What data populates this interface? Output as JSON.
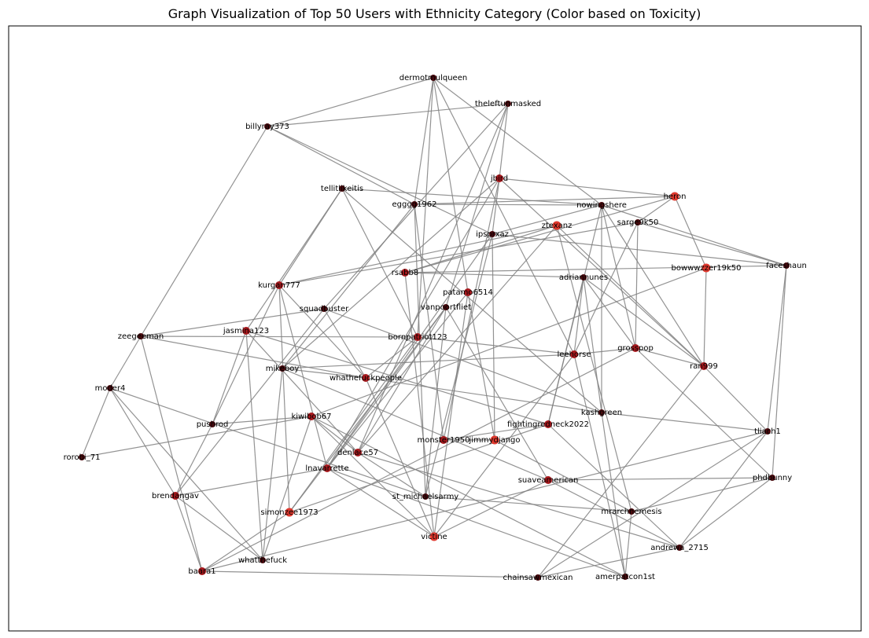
{
  "title": "Graph Visualization of Top 50 Users with Ethnicity Category (Color based on Toxicity)",
  "colors": {
    "low_toxicity": "#4a0a0e",
    "mid_toxicity": "#a8191d",
    "high_toxicity": "#e0392e",
    "edge": "#808080"
  },
  "nodes": [
    {
      "id": "dermotmulqueen",
      "toxicity": "low"
    },
    {
      "id": "theleftunmasked",
      "toxicity": "low"
    },
    {
      "id": "billyray373",
      "toxicity": "low"
    },
    {
      "id": "jbird",
      "toxicity": "mid"
    },
    {
      "id": "heron",
      "toxicity": "high"
    },
    {
      "id": "tellitlikeitis",
      "toxicity": "low"
    },
    {
      "id": "egggg1962",
      "toxicity": "low"
    },
    {
      "id": "nowingshere",
      "toxicity": "low"
    },
    {
      "id": "sarge9k50",
      "toxicity": "low"
    },
    {
      "id": "ztexanz",
      "toxicity": "high"
    },
    {
      "id": "ipsprxaz",
      "toxicity": "low"
    },
    {
      "id": "faceshaun",
      "toxicity": "low"
    },
    {
      "id": "bowwwzzer19k50",
      "toxicity": "high"
    },
    {
      "id": "rsabb8",
      "toxicity": "mid"
    },
    {
      "id": "adriannunes",
      "toxicity": "low"
    },
    {
      "id": "kurgan777",
      "toxicity": "mid"
    },
    {
      "id": "patamo6514",
      "toxicity": "mid"
    },
    {
      "id": "squadbuster",
      "toxicity": "low"
    },
    {
      "id": "vanpoortfliet",
      "toxicity": "low"
    },
    {
      "id": "zeegeeman",
      "toxicity": "low"
    },
    {
      "id": "jasmina123",
      "toxicity": "mid"
    },
    {
      "id": "bornpatriot123",
      "toxicity": "mid"
    },
    {
      "id": "leehorse",
      "toxicity": "mid"
    },
    {
      "id": "grosspop",
      "toxicity": "mid"
    },
    {
      "id": "ran999",
      "toxicity": "mid"
    },
    {
      "id": "mikeboy",
      "toxicity": "low"
    },
    {
      "id": "whathefuckpeople",
      "toxicity": "mid"
    },
    {
      "id": "moder4",
      "toxicity": "low"
    },
    {
      "id": "kashgreen",
      "toxicity": "low"
    },
    {
      "id": "kiwibob67",
      "toxicity": "mid"
    },
    {
      "id": "pushrod",
      "toxicity": "low"
    },
    {
      "id": "fightingredneck2022",
      "toxicity": "mid"
    },
    {
      "id": "tliach1",
      "toxicity": "low"
    },
    {
      "id": "monster1950",
      "toxicity": "mid"
    },
    {
      "id": "jimmydjango",
      "toxicity": "high"
    },
    {
      "id": "denlace57",
      "toxicity": "mid"
    },
    {
      "id": "rorobi_71",
      "toxicity": "low"
    },
    {
      "id": "lnavarrette",
      "toxicity": "mid"
    },
    {
      "id": "suaveamerican",
      "toxicity": "mid"
    },
    {
      "id": "phdbunny",
      "toxicity": "low"
    },
    {
      "id": "brendangav",
      "toxicity": "mid"
    },
    {
      "id": "st_michaelsarmy",
      "toxicity": "low"
    },
    {
      "id": "mrarchnemesis",
      "toxicity": "low"
    },
    {
      "id": "simonzee1973",
      "toxicity": "high"
    },
    {
      "id": "victine",
      "toxicity": "high"
    },
    {
      "id": "andrewa_2715",
      "toxicity": "low"
    },
    {
      "id": "whatthefuck",
      "toxicity": "low"
    },
    {
      "id": "baara1",
      "toxicity": "mid"
    },
    {
      "id": "chainsawmexican",
      "toxicity": "low"
    },
    {
      "id": "amerpatcon1st",
      "toxicity": "low"
    }
  ],
  "edges": [
    [
      "dermotmulqueen",
      "billyray373"
    ],
    [
      "dermotmulqueen",
      "egggg1962"
    ],
    [
      "dermotmulqueen",
      "nowingshere"
    ],
    [
      "dermotmulqueen",
      "patamo6514"
    ],
    [
      "dermotmulqueen",
      "bornpatriot123"
    ],
    [
      "dermotmulqueen",
      "leehorse"
    ],
    [
      "theleftunmasked",
      "billyray373"
    ],
    [
      "theleftunmasked",
      "jbird"
    ],
    [
      "theleftunmasked",
      "squadbuster"
    ],
    [
      "theleftunmasked",
      "vanpoortfliet"
    ],
    [
      "theleftunmasked",
      "denlace57"
    ],
    [
      "billyray373",
      "zeegeeman"
    ],
    [
      "billyray373",
      "ipsprxaz"
    ],
    [
      "billyray373",
      "egggg1962"
    ],
    [
      "jbird",
      "heron"
    ],
    [
      "jbird",
      "ipsprxaz"
    ],
    [
      "jbird",
      "ran999"
    ],
    [
      "jbird",
      "monster1950"
    ],
    [
      "jbird",
      "lnavarrette"
    ],
    [
      "jbird",
      "mikeboy"
    ],
    [
      "heron",
      "egggg1962"
    ],
    [
      "heron",
      "rsabb8"
    ],
    [
      "heron",
      "bowwwzzer19k50"
    ],
    [
      "heron",
      "sarge9k50"
    ],
    [
      "tellitlikeitis",
      "kurgan777"
    ],
    [
      "tellitlikeitis",
      "nowingshere"
    ],
    [
      "tellitlikeitis",
      "kashgreen"
    ],
    [
      "tellitlikeitis",
      "jasmina123"
    ],
    [
      "tellitlikeitis",
      "bornpatriot123"
    ],
    [
      "egggg1962",
      "monster1950"
    ],
    [
      "egggg1962",
      "st_michaelsarmy"
    ],
    [
      "egggg1962",
      "mikeboy"
    ],
    [
      "egggg1962",
      "nowingshere"
    ],
    [
      "nowingshere",
      "faceshaun"
    ],
    [
      "nowingshere",
      "ran999"
    ],
    [
      "nowingshere",
      "grosspop"
    ],
    [
      "nowingshere",
      "kashgreen"
    ],
    [
      "nowingshere",
      "fightingredneck2022"
    ],
    [
      "nowingshere",
      "ipsprxaz"
    ],
    [
      "sarge9k50",
      "faceshaun"
    ],
    [
      "sarge9k50",
      "grosspop"
    ],
    [
      "sarge9k50",
      "leehorse"
    ],
    [
      "sarge9k50",
      "kurgan777"
    ],
    [
      "ztexanz",
      "rsabb8"
    ],
    [
      "ztexanz",
      "ran999"
    ],
    [
      "ztexanz",
      "denlace57"
    ],
    [
      "ztexanz",
      "mrarchnemesis"
    ],
    [
      "ipsprxaz",
      "faceshaun"
    ],
    [
      "ipsprxaz",
      "jimmydjango"
    ],
    [
      "ipsprxaz",
      "st_michaelsarmy"
    ],
    [
      "ipsprxaz",
      "lnavarrette"
    ],
    [
      "faceshaun",
      "tliach1"
    ],
    [
      "faceshaun",
      "phdbunny"
    ],
    [
      "faceshaun",
      "rsabb8"
    ],
    [
      "bowwwzzer19k50",
      "ran999"
    ],
    [
      "bowwwzzer19k50",
      "kiwibob67"
    ],
    [
      "rsabb8",
      "adriannunes"
    ],
    [
      "rsabb8",
      "victine"
    ],
    [
      "adriannunes",
      "ran999"
    ],
    [
      "adriannunes",
      "grosspop"
    ],
    [
      "adriannunes",
      "kashgreen"
    ],
    [
      "adriannunes",
      "fightingredneck2022"
    ],
    [
      "adriannunes",
      "leehorse"
    ],
    [
      "kurgan777",
      "pushrod"
    ],
    [
      "kurgan777",
      "whathefuckpeople"
    ],
    [
      "kurgan777",
      "lnavarrette"
    ],
    [
      "kurgan777",
      "ztexanz"
    ],
    [
      "kurgan777",
      "simonzee1973"
    ],
    [
      "patamo6514",
      "victine"
    ],
    [
      "patamo6514",
      "lnavarrette"
    ],
    [
      "patamo6514",
      "jimmydjango"
    ],
    [
      "squadbuster",
      "zeegeeman"
    ],
    [
      "squadbuster",
      "whathefuckpeople"
    ],
    [
      "squadbuster",
      "kashgreen"
    ],
    [
      "squadbuster",
      "brendangav"
    ],
    [
      "vanpoortfliet",
      "denlace57"
    ],
    [
      "vanpoortfliet",
      "st_michaelsarmy"
    ],
    [
      "vanpoortfliet",
      "suaveamerican"
    ],
    [
      "vanpoortfliet",
      "lnavarrette"
    ],
    [
      "vanpoortfliet",
      "simonzee1973"
    ],
    [
      "zeegeeman",
      "moder4"
    ],
    [
      "zeegeeman",
      "baara1"
    ],
    [
      "zeegeeman",
      "whathefuckpeople"
    ],
    [
      "zeegeeman",
      "bornpatriot123"
    ],
    [
      "jasmina123",
      "pushrod"
    ],
    [
      "jasmina123",
      "whatthefuck"
    ],
    [
      "jasmina123",
      "denlace57"
    ],
    [
      "jasmina123",
      "fightingredneck2022"
    ],
    [
      "bornpatriot123",
      "leehorse"
    ],
    [
      "bornpatriot123",
      "whathefuckpeople"
    ],
    [
      "bornpatriot123",
      "simonzee1973"
    ],
    [
      "leehorse",
      "mikeboy"
    ],
    [
      "leehorse",
      "grosspop"
    ],
    [
      "leehorse",
      "victine"
    ],
    [
      "leehorse",
      "amerpatcon1st"
    ],
    [
      "grosspop",
      "ran999"
    ],
    [
      "grosspop",
      "phdbunny"
    ],
    [
      "grosspop",
      "baara1"
    ],
    [
      "ran999",
      "chainsawmexican"
    ],
    [
      "ran999",
      "tliach1"
    ],
    [
      "mikeboy",
      "whathefuckpeople"
    ],
    [
      "mikeboy",
      "suaveamerican"
    ],
    [
      "mikeboy",
      "whatthefuck"
    ],
    [
      "whathefuckpeople",
      "victine"
    ],
    [
      "whathefuckpeople",
      "kashgreen"
    ],
    [
      "moder4",
      "rorobi_71"
    ],
    [
      "moder4",
      "brendangav"
    ],
    [
      "moder4",
      "whatthefuck"
    ],
    [
      "moder4",
      "st_michaelsarmy"
    ],
    [
      "kashgreen",
      "tliach1"
    ],
    [
      "kashgreen",
      "amerpatcon1st"
    ],
    [
      "kiwibob67",
      "pushrod"
    ],
    [
      "kiwibob67",
      "rorobi_71"
    ],
    [
      "kiwibob67",
      "victine"
    ],
    [
      "kiwibob67",
      "amerpatcon1st"
    ],
    [
      "pushrod",
      "brendangav"
    ],
    [
      "fightingredneck2022",
      "andrewa_2715"
    ],
    [
      "fightingredneck2022",
      "monster1950"
    ],
    [
      "fightingredneck2022",
      "simonzee1973"
    ],
    [
      "tliach1",
      "andrewa_2715"
    ],
    [
      "tliach1",
      "baara1"
    ],
    [
      "tliach1",
      "chainsawmexican"
    ],
    [
      "monster1950",
      "jimmydjango"
    ],
    [
      "lnavarrette",
      "brendangav"
    ],
    [
      "lnavarrette",
      "amerpatcon1st"
    ],
    [
      "lnavarrette",
      "victine"
    ],
    [
      "suaveamerican",
      "phdbunny"
    ],
    [
      "suaveamerican",
      "victine"
    ],
    [
      "suaveamerican",
      "andrewa_2715"
    ],
    [
      "phdbunny",
      "andrewa_2715"
    ],
    [
      "phdbunny",
      "mrarchnemesis"
    ],
    [
      "brendangav",
      "baara1"
    ],
    [
      "brendangav",
      "whatthefuck"
    ],
    [
      "st_michaelsarmy",
      "mrarchnemesis"
    ],
    [
      "mrarchnemesis",
      "amerpatcon1st"
    ],
    [
      "mrarchnemesis",
      "jimmydjango"
    ],
    [
      "baara1",
      "chainsawmexican"
    ],
    [
      "baara1",
      "simonzee1973"
    ],
    [
      "andrewa_2715",
      "chainsawmexican"
    ],
    [
      "andrewa_2715",
      "denlace57"
    ],
    [
      "denlace57",
      "kiwibob67"
    ],
    [
      "denlace57",
      "st_michaelsarmy"
    ],
    [
      "whatthefuck",
      "kiwibob67"
    ]
  ]
}
